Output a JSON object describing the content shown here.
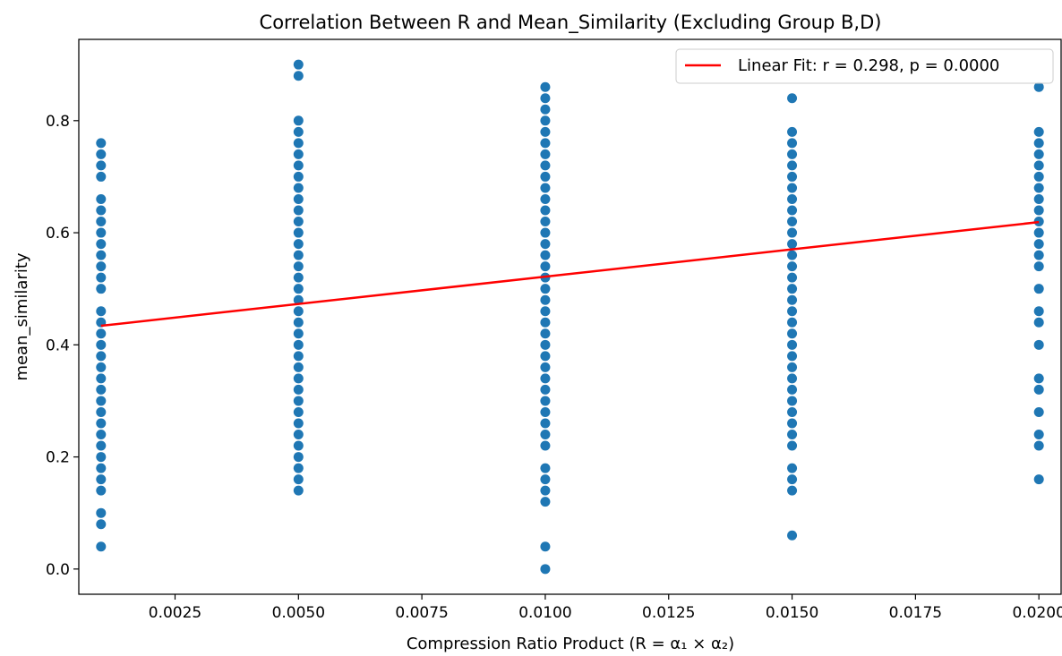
{
  "chart_data": {
    "type": "scatter",
    "title": "Correlation Between R and Mean_Similarity (Excluding Group B,D)",
    "xlabel": "Compression Ratio Product (R = α₁ × α₂)",
    "ylabel": "mean_similarity",
    "xlim": [
      0.00055,
      0.02045
    ],
    "ylim": [
      -0.045,
      0.945
    ],
    "xticks": [
      0.0025,
      0.005,
      0.0075,
      0.01,
      0.0125,
      0.015,
      0.0175,
      0.02
    ],
    "xtick_labels": [
      "0.0025",
      "0.0050",
      "0.0075",
      "0.0100",
      "0.0125",
      "0.0150",
      "0.0175",
      "0.0200"
    ],
    "yticks": [
      0.0,
      0.2,
      0.4,
      0.6,
      0.8
    ],
    "ytick_labels": [
      "0.0",
      "0.2",
      "0.4",
      "0.6",
      "0.8"
    ],
    "grid": false,
    "legend_position": "upper right",
    "colors": {
      "points": "#1f77b4",
      "fit_line": "#ff0000"
    },
    "points": [
      {
        "x": 0.001,
        "y": [
          0.04,
          0.08,
          0.1,
          0.14,
          0.16,
          0.18,
          0.2,
          0.22,
          0.24,
          0.26,
          0.28,
          0.3,
          0.32,
          0.34,
          0.36,
          0.38,
          0.4,
          0.42,
          0.44,
          0.46,
          0.5,
          0.52,
          0.54,
          0.56,
          0.58,
          0.6,
          0.62,
          0.64,
          0.66,
          0.7,
          0.72,
          0.74,
          0.76
        ]
      },
      {
        "x": 0.005,
        "y": [
          0.14,
          0.16,
          0.18,
          0.2,
          0.22,
          0.24,
          0.26,
          0.28,
          0.3,
          0.32,
          0.34,
          0.36,
          0.38,
          0.4,
          0.42,
          0.44,
          0.46,
          0.48,
          0.5,
          0.52,
          0.54,
          0.56,
          0.58,
          0.6,
          0.62,
          0.64,
          0.66,
          0.68,
          0.7,
          0.72,
          0.74,
          0.76,
          0.78,
          0.8,
          0.88,
          0.9
        ]
      },
      {
        "x": 0.01,
        "y": [
          0.0,
          0.04,
          0.12,
          0.14,
          0.16,
          0.18,
          0.22,
          0.24,
          0.26,
          0.28,
          0.3,
          0.32,
          0.34,
          0.36,
          0.38,
          0.4,
          0.42,
          0.44,
          0.46,
          0.48,
          0.5,
          0.52,
          0.54,
          0.56,
          0.58,
          0.6,
          0.62,
          0.64,
          0.66,
          0.68,
          0.7,
          0.72,
          0.74,
          0.76,
          0.78,
          0.8,
          0.82,
          0.84,
          0.86
        ]
      },
      {
        "x": 0.015,
        "y": [
          0.06,
          0.14,
          0.16,
          0.18,
          0.22,
          0.24,
          0.26,
          0.28,
          0.3,
          0.32,
          0.34,
          0.36,
          0.38,
          0.4,
          0.42,
          0.44,
          0.46,
          0.48,
          0.5,
          0.52,
          0.54,
          0.56,
          0.58,
          0.6,
          0.62,
          0.64,
          0.66,
          0.68,
          0.7,
          0.72,
          0.74,
          0.76,
          0.78,
          0.84
        ]
      },
      {
        "x": 0.02,
        "y": [
          0.16,
          0.22,
          0.24,
          0.28,
          0.32,
          0.34,
          0.4,
          0.44,
          0.46,
          0.5,
          0.54,
          0.56,
          0.58,
          0.6,
          0.62,
          0.64,
          0.66,
          0.68,
          0.7,
          0.72,
          0.74,
          0.76,
          0.78,
          0.86
        ]
      }
    ],
    "fit_line": {
      "label": "Linear Fit: r = 0.298, p = 0.0000",
      "x": [
        0.001,
        0.02
      ],
      "y": [
        0.434,
        0.619
      ]
    }
  }
}
